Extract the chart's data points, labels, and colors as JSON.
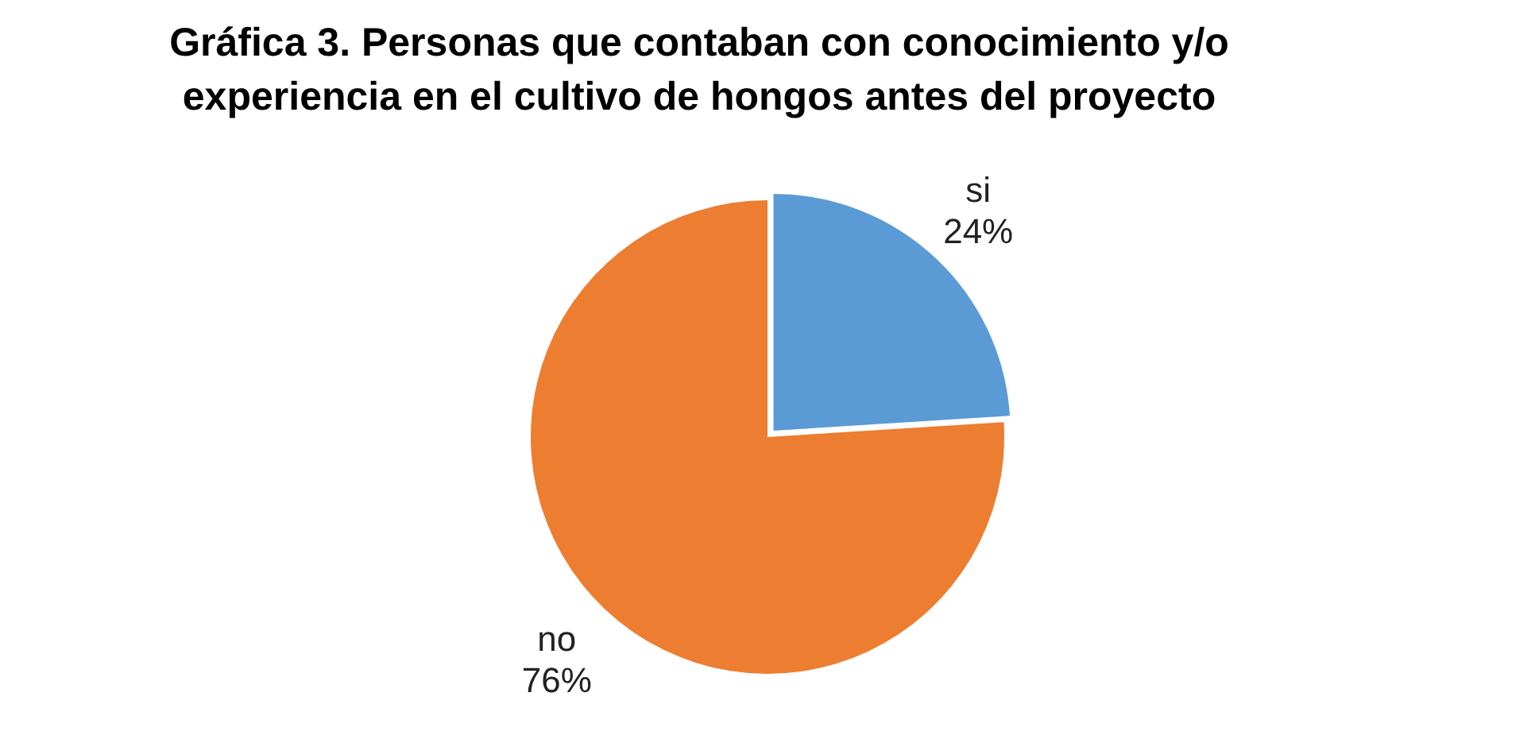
{
  "chart_data": {
    "type": "pie",
    "title": "Gráfica 3. Personas que contaban con conocimiento y/o experiencia en el cultivo de hongos antes del proyecto",
    "categories": [
      "si",
      "no"
    ],
    "values": [
      24,
      76
    ],
    "colors": [
      "#5b9bd5",
      "#ed7d31"
    ],
    "value_labels": [
      "24%",
      "76%"
    ],
    "legend": false
  }
}
